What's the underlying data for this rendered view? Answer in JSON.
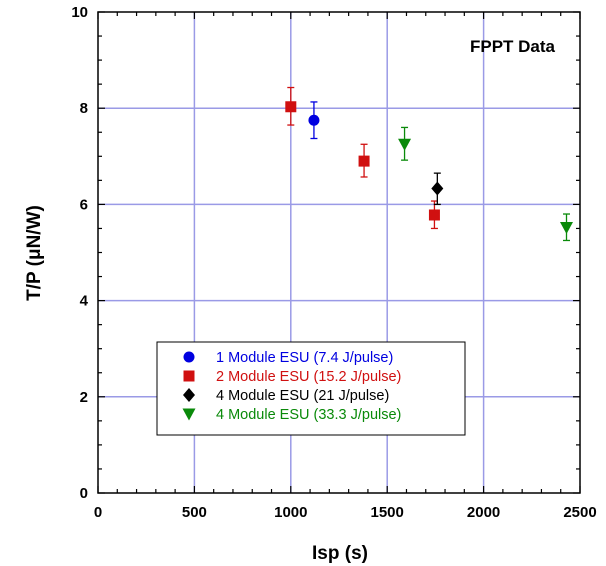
{
  "chart_data": {
    "type": "scatter",
    "annotation": "FPPT Data",
    "xlabel": "Isp (s)",
    "ylabel": "T/P (μN/W)",
    "xlim": [
      0,
      2500
    ],
    "ylim": [
      0,
      10
    ],
    "xticks": [
      0,
      500,
      1000,
      1500,
      2000,
      2500
    ],
    "yticks": [
      0,
      2,
      4,
      6,
      8,
      10
    ],
    "x_tick_labels": [
      "0",
      "500",
      "1000",
      "1500",
      "2000",
      "2500"
    ],
    "y_tick_labels": [
      "0",
      "2",
      "4",
      "6",
      "8",
      "10"
    ],
    "grid": true,
    "legend_position": "bottom-left",
    "series": [
      {
        "name": "1 Module ESU (7.4 J/pulse)",
        "marker": "circle",
        "color": "#0000e0",
        "points": [
          {
            "x": 1120,
            "y": 7.75,
            "err_low": 7.37,
            "err_high": 8.13
          }
        ]
      },
      {
        "name": "2 Module ESU (15.2 J/pulse)",
        "marker": "square",
        "color": "#d01010",
        "points": [
          {
            "x": 1000,
            "y": 8.03,
            "err_low": 7.65,
            "err_high": 8.43
          },
          {
            "x": 1380,
            "y": 6.9,
            "err_low": 6.57,
            "err_high": 7.25
          },
          {
            "x": 1745,
            "y": 5.78,
            "err_low": 5.5,
            "err_high": 6.07
          }
        ]
      },
      {
        "name": "4 Module ESU (21 J/pulse)",
        "marker": "diamond",
        "color": "#000000",
        "points": [
          {
            "x": 1760,
            "y": 6.33,
            "err_low": 6.0,
            "err_high": 6.65
          }
        ]
      },
      {
        "name": "4 Module ESU (33.3 J/pulse)",
        "marker": "triangle-down",
        "color": "#0a8a0a",
        "points": [
          {
            "x": 1590,
            "y": 7.25,
            "err_low": 6.92,
            "err_high": 7.6
          },
          {
            "x": 2430,
            "y": 5.52,
            "err_low": 5.25,
            "err_high": 5.8
          }
        ]
      }
    ]
  },
  "colors": {
    "grid": "#9a9ae6",
    "frame": "#000000",
    "background": "#ffffff"
  }
}
